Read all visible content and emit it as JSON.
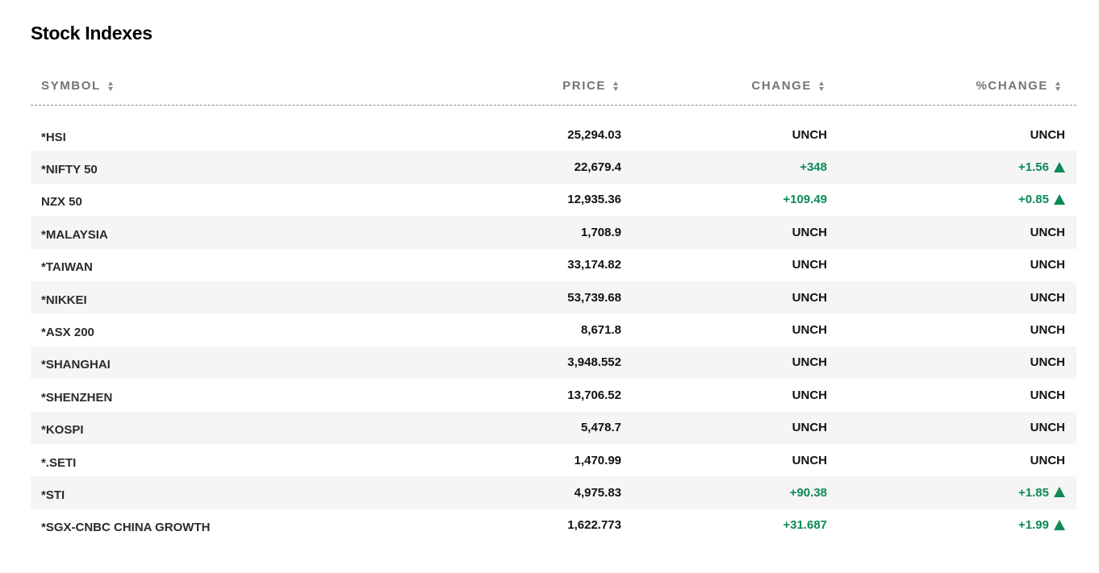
{
  "title": "Stock Indexes",
  "columns": {
    "symbol": "SYMBOL",
    "price": "PRICE",
    "change": "CHANGE",
    "pct_change": "%CHANGE"
  },
  "colors": {
    "positive": "#0d8a55",
    "header_text": "#747474",
    "alt_row_bg": "#f5f5f5"
  },
  "rows": [
    {
      "symbol": "*HSI",
      "price": "25,294.03",
      "change": "UNCH",
      "pct_change": "UNCH",
      "direction": "flat"
    },
    {
      "symbol": "*NIFTY 50",
      "price": "22,679.4",
      "change": "+348",
      "pct_change": "+1.56",
      "direction": "up"
    },
    {
      "symbol": "NZX 50",
      "price": "12,935.36",
      "change": "+109.49",
      "pct_change": "+0.85",
      "direction": "up"
    },
    {
      "symbol": "*MALAYSIA",
      "price": "1,708.9",
      "change": "UNCH",
      "pct_change": "UNCH",
      "direction": "flat"
    },
    {
      "symbol": "*TAIWAN",
      "price": "33,174.82",
      "change": "UNCH",
      "pct_change": "UNCH",
      "direction": "flat"
    },
    {
      "symbol": "*NIKKEI",
      "price": "53,739.68",
      "change": "UNCH",
      "pct_change": "UNCH",
      "direction": "flat"
    },
    {
      "symbol": "*ASX 200",
      "price": "8,671.8",
      "change": "UNCH",
      "pct_change": "UNCH",
      "direction": "flat"
    },
    {
      "symbol": "*SHANGHAI",
      "price": "3,948.552",
      "change": "UNCH",
      "pct_change": "UNCH",
      "direction": "flat"
    },
    {
      "symbol": "*SHENZHEN",
      "price": "13,706.52",
      "change": "UNCH",
      "pct_change": "UNCH",
      "direction": "flat"
    },
    {
      "symbol": "*KOSPI",
      "price": "5,478.7",
      "change": "UNCH",
      "pct_change": "UNCH",
      "direction": "flat"
    },
    {
      "symbol": "*.SETI",
      "price": "1,470.99",
      "change": "UNCH",
      "pct_change": "UNCH",
      "direction": "flat"
    },
    {
      "symbol": "*STI",
      "price": "4,975.83",
      "change": "+90.38",
      "pct_change": "+1.85",
      "direction": "up"
    },
    {
      "symbol": "*SGX-CNBC CHINA GROWTH",
      "price": "1,622.773",
      "change": "+31.687",
      "pct_change": "+1.99",
      "direction": "up"
    }
  ]
}
